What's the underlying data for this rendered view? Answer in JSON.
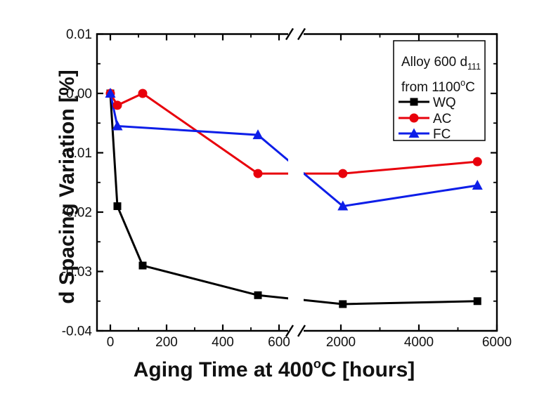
{
  "chart_data": {
    "type": "line",
    "title": "",
    "ylabel": "d Spacing Variation [%]",
    "xlabel_parts": {
      "pre": "Aging Time at 400",
      "sup": "o",
      "post": "C [hours]"
    },
    "x_axis": {
      "broken_axis": true,
      "segment1": {
        "majors": [
          0,
          200,
          400,
          600
        ],
        "minors": [
          100,
          300,
          500
        ],
        "major_labels": [
          "0",
          "200",
          "400",
          "600"
        ]
      },
      "segment2": {
        "majors": [
          2000,
          4000,
          6000
        ],
        "minors": [
          3000,
          5000
        ],
        "major_labels": [
          "2000",
          "4000",
          "6000"
        ]
      }
    },
    "y_axis": {
      "majors": [
        0.01,
        0.0,
        -0.01,
        -0.02,
        -0.03,
        -0.04
      ],
      "major_labels": [
        "0.01",
        "0.00",
        "-0.01",
        "-0.02",
        "-0.03",
        "-0.04"
      ],
      "minors": [
        0.005,
        -0.005,
        -0.015,
        -0.025,
        -0.035
      ],
      "range": [
        -0.04,
        0.01
      ],
      "grid": "off"
    },
    "legend": {
      "position": "top-right",
      "title_line1": {
        "text": "Alloy 600 d",
        "sub": "111"
      },
      "title_line2": {
        "pre": "from 1100",
        "sup": "o",
        "post": "C"
      }
    },
    "series": [
      {
        "name": "WQ",
        "color": "#000000",
        "marker": "square",
        "points": [
          [
            0,
            0.0
          ],
          [
            25,
            -0.019
          ],
          [
            115,
            -0.029
          ],
          [
            525,
            -0.034
          ],
          [
            2050,
            -0.0355
          ],
          [
            5500,
            -0.035
          ]
        ]
      },
      {
        "name": "AC",
        "color": "#e8000b",
        "marker": "circle",
        "points": [
          [
            0,
            0.0
          ],
          [
            25,
            -0.002
          ],
          [
            115,
            0.0
          ],
          [
            525,
            -0.0135
          ],
          [
            2050,
            -0.0135
          ],
          [
            5500,
            -0.0115
          ]
        ]
      },
      {
        "name": "FC",
        "color": "#0d1ee8",
        "marker": "triangle",
        "points": [
          [
            0,
            0.0
          ],
          [
            25,
            -0.0055
          ],
          [
            525,
            -0.007
          ],
          [
            2050,
            -0.019
          ],
          [
            5500,
            -0.0155
          ]
        ]
      }
    ]
  }
}
